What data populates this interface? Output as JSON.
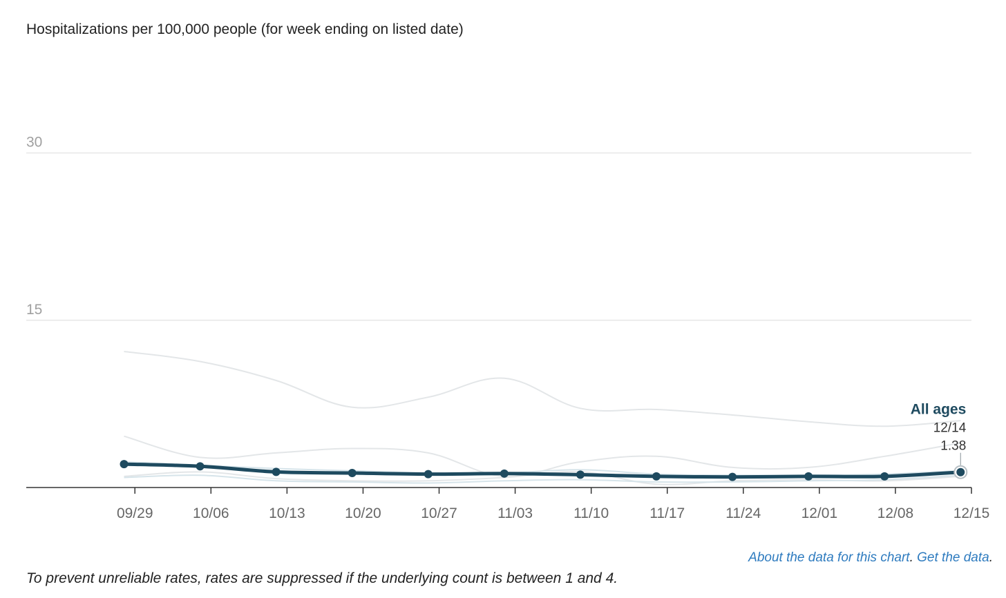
{
  "chart_data": {
    "type": "line",
    "title": "Hospitalizations per 100,000 people (for week ending on listed date)",
    "xlabel": "",
    "ylabel": "",
    "ylim": [
      0,
      40
    ],
    "yticks": [
      15,
      30
    ],
    "x_tick_labels": [
      "09/29",
      "10/06",
      "10/13",
      "10/20",
      "10/27",
      "11/03",
      "11/10",
      "11/17",
      "11/24",
      "12/01",
      "12/08",
      "12/15"
    ],
    "x_ticks": [
      "2024-09-29",
      "2024-10-06",
      "2024-10-13",
      "2024-10-20",
      "2024-10-27",
      "2024-11-03",
      "2024-11-10",
      "2024-11-17",
      "2024-11-24",
      "2024-12-01",
      "2024-12-08",
      "2024-12-15"
    ],
    "xlim": [
      "2024-09-19",
      "2024-12-15"
    ],
    "grid": true,
    "series": [
      {
        "name": "All ages",
        "highlighted": true,
        "color": "#1e4a5f",
        "x": [
          "2024-09-28",
          "2024-10-05",
          "2024-10-12",
          "2024-10-19",
          "2024-10-26",
          "2024-11-02",
          "2024-11-09",
          "2024-11-16",
          "2024-11-23",
          "2024-11-30",
          "2024-12-07",
          "2024-12-14"
        ],
        "values": [
          2.1,
          1.9,
          1.4,
          1.3,
          1.2,
          1.25,
          1.15,
          1.0,
          0.95,
          1.0,
          1.0,
          1.38
        ]
      },
      {
        "color": "#e3e6e8",
        "x": [
          "2024-09-28",
          "2024-10-05",
          "2024-10-12",
          "2024-10-19",
          "2024-10-26",
          "2024-11-02",
          "2024-11-09",
          "2024-11-16",
          "2024-11-23",
          "2024-11-30",
          "2024-12-07",
          "2024-12-14"
        ],
        "values": [
          12.2,
          11.3,
          9.6,
          7.2,
          8.1,
          9.8,
          7.1,
          7.0,
          6.5,
          5.9,
          5.5,
          6.0
        ]
      },
      {
        "color": "#e3e6e8",
        "x": [
          "2024-09-28",
          "2024-10-05",
          "2024-10-12",
          "2024-10-19",
          "2024-10-26",
          "2024-11-02",
          "2024-11-09",
          "2024-11-16",
          "2024-11-23",
          "2024-11-30",
          "2024-12-07",
          "2024-12-14"
        ],
        "values": [
          4.6,
          2.7,
          3.1,
          3.5,
          3.1,
          1.0,
          2.3,
          2.8,
          1.8,
          1.8,
          2.8,
          4.0
        ]
      },
      {
        "color": "#e3e6e8",
        "x": [
          "2024-09-28",
          "2024-10-05",
          "2024-10-12",
          "2024-10-19",
          "2024-10-26",
          "2024-11-02",
          "2024-11-09",
          "2024-11-16",
          "2024-11-23",
          "2024-11-30",
          "2024-12-07",
          "2024-12-14"
        ],
        "values": [
          1.0,
          1.4,
          0.8,
          0.6,
          0.6,
          0.9,
          1.4,
          0.3,
          0.6,
          0.7,
          0.6,
          1.0
        ]
      },
      {
        "color": "#d6e4ea",
        "x": [
          "2024-09-28",
          "2024-10-05",
          "2024-10-12",
          "2024-10-19",
          "2024-10-26",
          "2024-11-02",
          "2024-11-09",
          "2024-11-16",
          "2024-11-23",
          "2024-11-30",
          "2024-12-07",
          "2024-12-14"
        ],
        "values": [
          0.9,
          1.1,
          0.6,
          0.5,
          0.4,
          0.6,
          0.7,
          0.5,
          0.5,
          0.6,
          0.7,
          1.1
        ]
      },
      {
        "color": "#d6e4ea",
        "x": [
          "2024-09-28",
          "2024-10-05",
          "2024-10-12",
          "2024-10-19",
          "2024-10-26",
          "2024-11-02",
          "2024-11-09",
          "2024-11-16",
          "2024-11-23",
          "2024-11-30",
          "2024-12-07",
          "2024-12-14"
        ],
        "values": [
          2.3,
          2.0,
          1.7,
          1.5,
          1.3,
          1.3,
          1.6,
          1.2,
          1.1,
          1.1,
          1.2,
          1.5
        ]
      }
    ],
    "annotation": {
      "series": "All ages",
      "date_label": "12/14",
      "value_label": "1.38"
    }
  },
  "footer": {
    "link1": "About the data for this chart",
    "sep": ". ",
    "link2": "Get the data",
    "end": "."
  },
  "footnote": "To prevent unreliable rates, rates are suppressed if the underlying count is between 1 and 4."
}
